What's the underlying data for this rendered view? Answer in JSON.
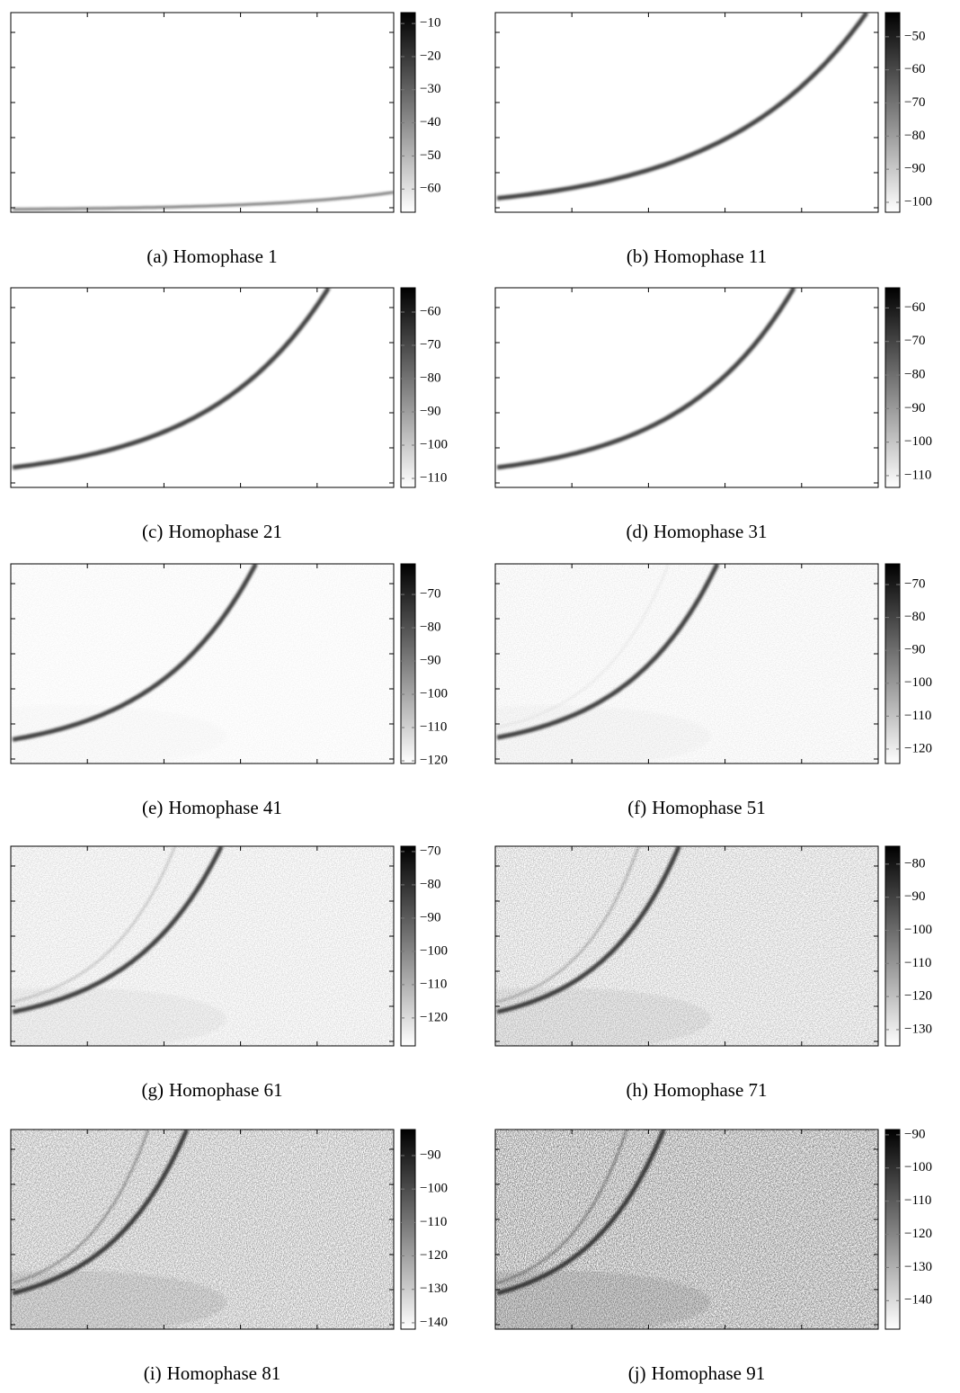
{
  "figure": {
    "panels": [
      {
        "label": "(a)",
        "title": "Homophase 1",
        "colorbar": {
          "lim": [
            -67,
            -6.7
          ],
          "ticks": [
            {
              "value": -10,
              "label": "−10"
            },
            {
              "value": -20,
              "label": "−20"
            },
            {
              "value": -30,
              "label": "−30"
            },
            {
              "value": -40,
              "label": "−40"
            },
            {
              "value": -50,
              "label": "−50"
            },
            {
              "value": -60,
              "label": "−60"
            }
          ]
        }
      },
      {
        "label": "(b)",
        "title": "Homophase 11",
        "colorbar": {
          "lim": [
            -103,
            -42.7
          ],
          "ticks": [
            {
              "value": -50,
              "label": "−50"
            },
            {
              "value": -60,
              "label": "−60"
            },
            {
              "value": -70,
              "label": "−70"
            },
            {
              "value": -80,
              "label": "−80"
            },
            {
              "value": -90,
              "label": "−90"
            },
            {
              "value": -100,
              "label": "−100"
            }
          ]
        }
      },
      {
        "label": "(c)",
        "title": "Homophase 21",
        "colorbar": {
          "lim": [
            -112.7,
            -52.7
          ],
          "ticks": [
            {
              "value": -60,
              "label": "−60"
            },
            {
              "value": -70,
              "label": "−70"
            },
            {
              "value": -80,
              "label": "−80"
            },
            {
              "value": -90,
              "label": "−90"
            },
            {
              "value": -100,
              "label": "−100"
            },
            {
              "value": -110,
              "label": "−110"
            }
          ]
        }
      },
      {
        "label": "(d)",
        "title": "Homophase 31",
        "colorbar": {
          "lim": [
            -113.5,
            -54
          ],
          "ticks": [
            {
              "value": -60,
              "label": "−60"
            },
            {
              "value": -70,
              "label": "−70"
            },
            {
              "value": -80,
              "label": "−80"
            },
            {
              "value": -90,
              "label": "−90"
            },
            {
              "value": -100,
              "label": "−100"
            },
            {
              "value": -110,
              "label": "−110"
            }
          ]
        }
      },
      {
        "label": "(e)",
        "title": "Homophase 41",
        "colorbar": {
          "lim": [
            -120.8,
            -60.8
          ],
          "ticks": [
            {
              "value": -70,
              "label": "−70"
            },
            {
              "value": -80,
              "label": "−80"
            },
            {
              "value": -90,
              "label": "−90"
            },
            {
              "value": -100,
              "label": "−100"
            },
            {
              "value": -110,
              "label": "−110"
            },
            {
              "value": -120,
              "label": "−120"
            }
          ]
        }
      },
      {
        "label": "(f)",
        "title": "Homophase 51",
        "colorbar": {
          "lim": [
            -124.4,
            -63.7
          ],
          "ticks": [
            {
              "value": -70,
              "label": "−70"
            },
            {
              "value": -80,
              "label": "−80"
            },
            {
              "value": -90,
              "label": "−90"
            },
            {
              "value": -100,
              "label": "−100"
            },
            {
              "value": -110,
              "label": "−110"
            },
            {
              "value": -120,
              "label": "−120"
            }
          ]
        }
      },
      {
        "label": "(g)",
        "title": "Homophase 61",
        "colorbar": {
          "lim": [
            -128.4,
            -68.4
          ],
          "ticks": [
            {
              "value": -70,
              "label": "−70"
            },
            {
              "value": -80,
              "label": "−80"
            },
            {
              "value": -90,
              "label": "−90"
            },
            {
              "value": -100,
              "label": "−100"
            },
            {
              "value": -110,
              "label": "−110"
            },
            {
              "value": -120,
              "label": "−120"
            }
          ]
        }
      },
      {
        "label": "(h)",
        "title": "Homophase 71",
        "colorbar": {
          "lim": [
            -134.9,
            -74.6
          ],
          "ticks": [
            {
              "value": -80,
              "label": "−80"
            },
            {
              "value": -90,
              "label": "−90"
            },
            {
              "value": -100,
              "label": "−100"
            },
            {
              "value": -110,
              "label": "−110"
            },
            {
              "value": -120,
              "label": "−120"
            },
            {
              "value": -130,
              "label": "−130"
            }
          ]
        }
      },
      {
        "label": "(i)",
        "title": "Homophase 81",
        "colorbar": {
          "lim": [
            -141.9,
            -82.2
          ],
          "ticks": [
            {
              "value": -90,
              "label": "−90"
            },
            {
              "value": -100,
              "label": "−100"
            },
            {
              "value": -110,
              "label": "−110"
            },
            {
              "value": -120,
              "label": "−120"
            },
            {
              "value": -130,
              "label": "−130"
            },
            {
              "value": -140,
              "label": "−140"
            }
          ]
        }
      },
      {
        "label": "(j)",
        "title": "Homophase 91",
        "colorbar": {
          "lim": [
            -148.6,
            -88.4
          ],
          "ticks": [
            {
              "value": -90,
              "label": "−90"
            },
            {
              "value": -100,
              "label": "−100"
            },
            {
              "value": -110,
              "label": "−110"
            },
            {
              "value": -120,
              "label": "−120"
            },
            {
              "value": -130,
              "label": "−130"
            },
            {
              "value": -140,
              "label": "−140"
            }
          ]
        }
      }
    ]
  }
}
